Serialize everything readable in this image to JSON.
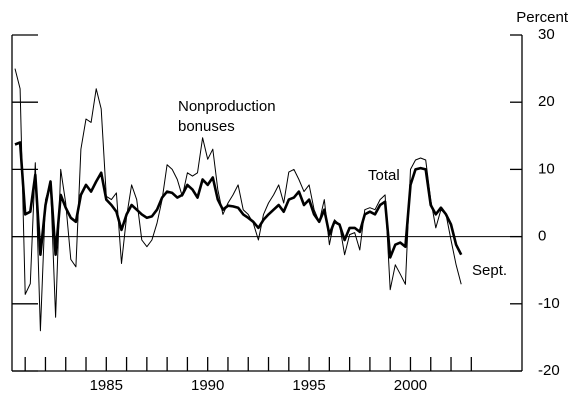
{
  "chart_data": {
    "type": "line",
    "y_label": "Percent",
    "annotations": [
      "Nonproduction",
      "bonuses",
      "Total",
      "Sept."
    ],
    "x": [
      1980.5,
      1980.75,
      1981,
      1981.25,
      1981.5,
      1981.75,
      1982,
      1982.25,
      1982.5,
      1982.75,
      1983,
      1983.25,
      1983.5,
      1983.75,
      1984,
      1984.25,
      1984.5,
      1984.75,
      1985,
      1985.25,
      1985.5,
      1985.75,
      1986,
      1986.25,
      1986.5,
      1986.75,
      1987,
      1987.25,
      1987.5,
      1987.75,
      1988,
      1988.25,
      1988.5,
      1988.75,
      1989,
      1989.25,
      1989.5,
      1989.75,
      1990,
      1990.25,
      1990.5,
      1990.75,
      1991,
      1991.25,
      1991.5,
      1991.75,
      1992,
      1992.25,
      1992.5,
      1992.75,
      1993,
      1993.25,
      1993.5,
      1993.75,
      1994,
      1994.25,
      1994.5,
      1994.75,
      1995,
      1995.25,
      1995.5,
      1995.75,
      1996,
      1996.25,
      1996.5,
      1996.75,
      1997,
      1997.25,
      1997.5,
      1997.75,
      1998,
      1998.25,
      1998.5,
      1998.75,
      1999,
      1999.25,
      1999.5,
      1999.75,
      2000,
      2000.25,
      2000.5,
      2000.75,
      2001,
      2001.25,
      2001.5,
      2001.75,
      2002,
      2002.25,
      2002.5
    ],
    "series": [
      {
        "color": "#000000",
        "width": 2.6,
        "values": [
          13.7,
          14,
          3.3,
          3.7,
          9.2,
          -2.7,
          4.7,
          8.2,
          -2.7,
          6.2,
          4.3,
          2.8,
          2.2,
          6.2,
          7.7,
          6.7,
          8.2,
          9.5,
          5.5,
          4.7,
          3.7,
          1,
          3.3,
          4.7,
          4,
          3.3,
          2.8,
          3,
          4,
          5.8,
          6.7,
          6.5,
          5.8,
          6.2,
          7.7,
          7,
          5.8,
          8.5,
          7.7,
          8.8,
          5.5,
          4,
          4.6,
          4.5,
          4.3,
          3.3,
          2.8,
          2.2,
          1.3,
          2.5,
          3.3,
          4,
          4.7,
          3.7,
          5.5,
          5.8,
          6.7,
          4.7,
          5.5,
          3.3,
          2.2,
          4,
          0.3,
          2.2,
          1.8,
          -0.5,
          1.3,
          1.3,
          0.7,
          3.3,
          3.7,
          3.3,
          4.7,
          5.2,
          -3.1,
          -1.2,
          -0.9,
          -1.5,
          7.7,
          10,
          10.2,
          10,
          4.7,
          3.3,
          4.3,
          3.3,
          1.8,
          -1.2,
          -2.7
        ]
      },
      {
        "color": "#000000",
        "width": 1,
        "values": [
          25,
          22,
          -8.6,
          -7,
          11,
          -14,
          5.5,
          8,
          -12,
          10,
          5,
          -3.4,
          -4.5,
          13,
          17.5,
          17,
          22,
          19,
          6,
          5.5,
          6.5,
          -4,
          3,
          7.7,
          5.5,
          -0.5,
          -1.5,
          -0.5,
          2,
          5.5,
          10.7,
          10,
          8.5,
          6,
          9.5,
          9,
          9.5,
          14.7,
          11.5,
          13,
          7,
          3.3,
          5,
          6.2,
          7.7,
          4,
          3.3,
          2,
          -0.5,
          3.3,
          5,
          6.2,
          7.7,
          5,
          9.6,
          10,
          8.5,
          6.7,
          7.7,
          4,
          2.2,
          5.5,
          -1.2,
          2.5,
          1.8,
          -2.7,
          0.3,
          0.6,
          -2,
          4,
          4.3,
          4,
          5.5,
          6.2,
          -7.9,
          -4.2,
          -5.6,
          -7.1,
          10,
          11.4,
          11.7,
          11.4,
          5.5,
          1.3,
          4,
          3.3,
          -0.5,
          -4.2,
          -7.1
        ]
      }
    ],
    "xlim": [
      1980.35,
      2005.5
    ],
    "xticks": [
      1985,
      1990,
      1995,
      2000
    ],
    "xminorticks": [
      1981,
      1982,
      1983,
      1984,
      1985,
      1986,
      1987,
      1988,
      1989,
      1990,
      1991,
      1992,
      1993,
      1994,
      1995,
      1996,
      1997,
      1998,
      1999,
      2000,
      2001,
      2002,
      2003
    ],
    "ylim": [
      -20,
      30
    ],
    "yticks": [
      -20,
      -10,
      0,
      10,
      20,
      30
    ],
    "zero_line": true,
    "y_axis_side": "right"
  }
}
